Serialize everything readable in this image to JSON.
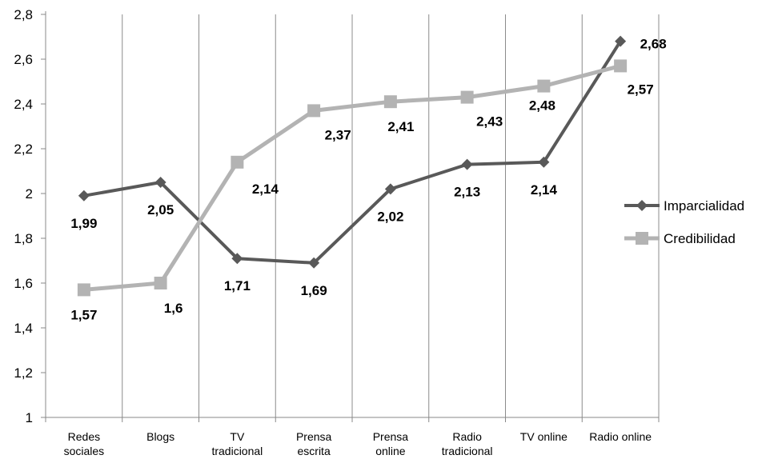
{
  "chart_data": {
    "type": "line",
    "categories": [
      [
        "Redes",
        "sociales"
      ],
      [
        "Blogs"
      ],
      [
        "TV",
        "tradicional"
      ],
      [
        "Prensa",
        "escrita"
      ],
      [
        "Prensa",
        "online"
      ],
      [
        "Radio",
        "tradicional"
      ],
      [
        "TV online"
      ],
      [
        "Radio online"
      ]
    ],
    "series": [
      {
        "name": "Imparcialidad",
        "values": [
          1.99,
          2.05,
          1.71,
          1.69,
          2.02,
          2.13,
          2.14,
          2.68
        ],
        "labels": [
          "1,99",
          "2,05",
          "1,71",
          "1,69",
          "2,02",
          "2,13",
          "2,14",
          "2,68"
        ],
        "color": "#595959",
        "marker": "diamond"
      },
      {
        "name": "Credibilidad",
        "values": [
          1.57,
          1.6,
          2.14,
          2.37,
          2.41,
          2.43,
          2.48,
          2.57
        ],
        "labels": [
          "1,57",
          "1,6",
          "2,14",
          "2,37",
          "2,41",
          "2,43",
          "2,48",
          "2,57"
        ],
        "color": "#b3b3b3",
        "marker": "square"
      }
    ],
    "yticks": [
      "1",
      "1,2",
      "1,4",
      "1,6",
      "1,8",
      "2",
      "2,2",
      "2,4",
      "2,6",
      "2,8"
    ],
    "ylim": [
      1,
      2.8
    ],
    "grid": "vertical",
    "legend": "right"
  }
}
